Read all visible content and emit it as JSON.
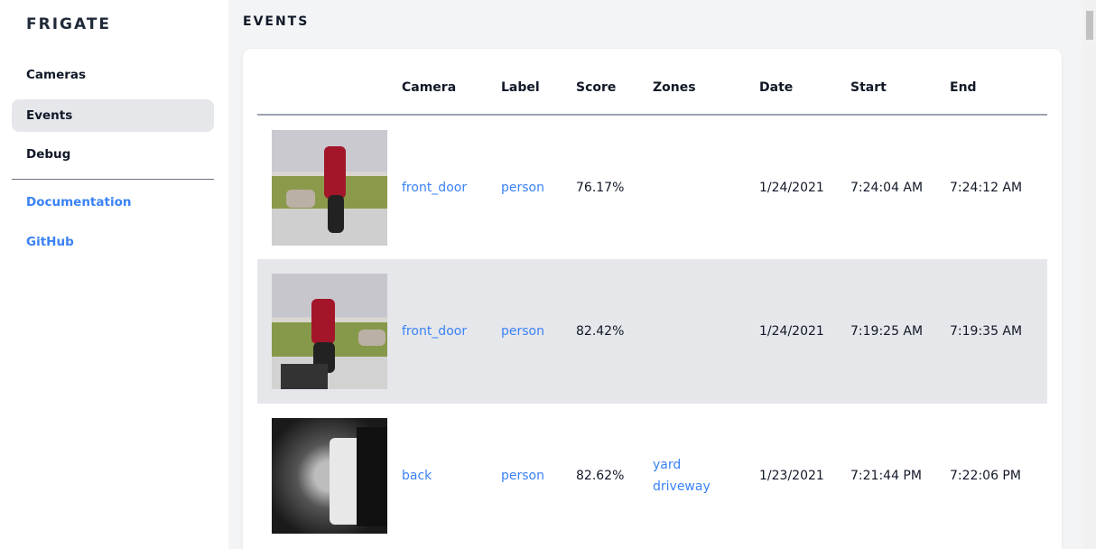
{
  "sidebar": {
    "brand": "FRIGATE",
    "items": [
      {
        "label": "Cameras",
        "active": false
      },
      {
        "label": "Events",
        "active": true
      },
      {
        "label": "Debug",
        "active": false
      }
    ],
    "links": [
      {
        "label": "Documentation"
      },
      {
        "label": "GitHub"
      }
    ]
  },
  "main": {
    "title": "EVENTS",
    "columns": [
      "",
      "Camera",
      "Label",
      "Score",
      "Zones",
      "Date",
      "Start",
      "End"
    ],
    "rows": [
      {
        "thumbnail": "person walking dog, red jacket",
        "camera": "front_door",
        "label": "person",
        "score": "76.17%",
        "zones": [],
        "date": "1/24/2021",
        "start": "7:24:04 AM",
        "end": "7:24:12 AM"
      },
      {
        "thumbnail": "person walking dog, red jacket",
        "camera": "front_door",
        "label": "person",
        "score": "82.42%",
        "zones": [],
        "date": "1/24/2021",
        "start": "7:19:25 AM",
        "end": "7:19:35 AM"
      },
      {
        "thumbnail": "night infrared person",
        "camera": "back",
        "label": "person",
        "score": "82.62%",
        "zones": [
          "yard",
          "driveway"
        ],
        "date": "1/23/2021",
        "start": "7:21:44 PM",
        "end": "7:22:06 PM"
      }
    ]
  },
  "colors": {
    "accent": "#3b82f6",
    "active_bg": "#e5e7eb",
    "background": "#f3f4f6"
  }
}
